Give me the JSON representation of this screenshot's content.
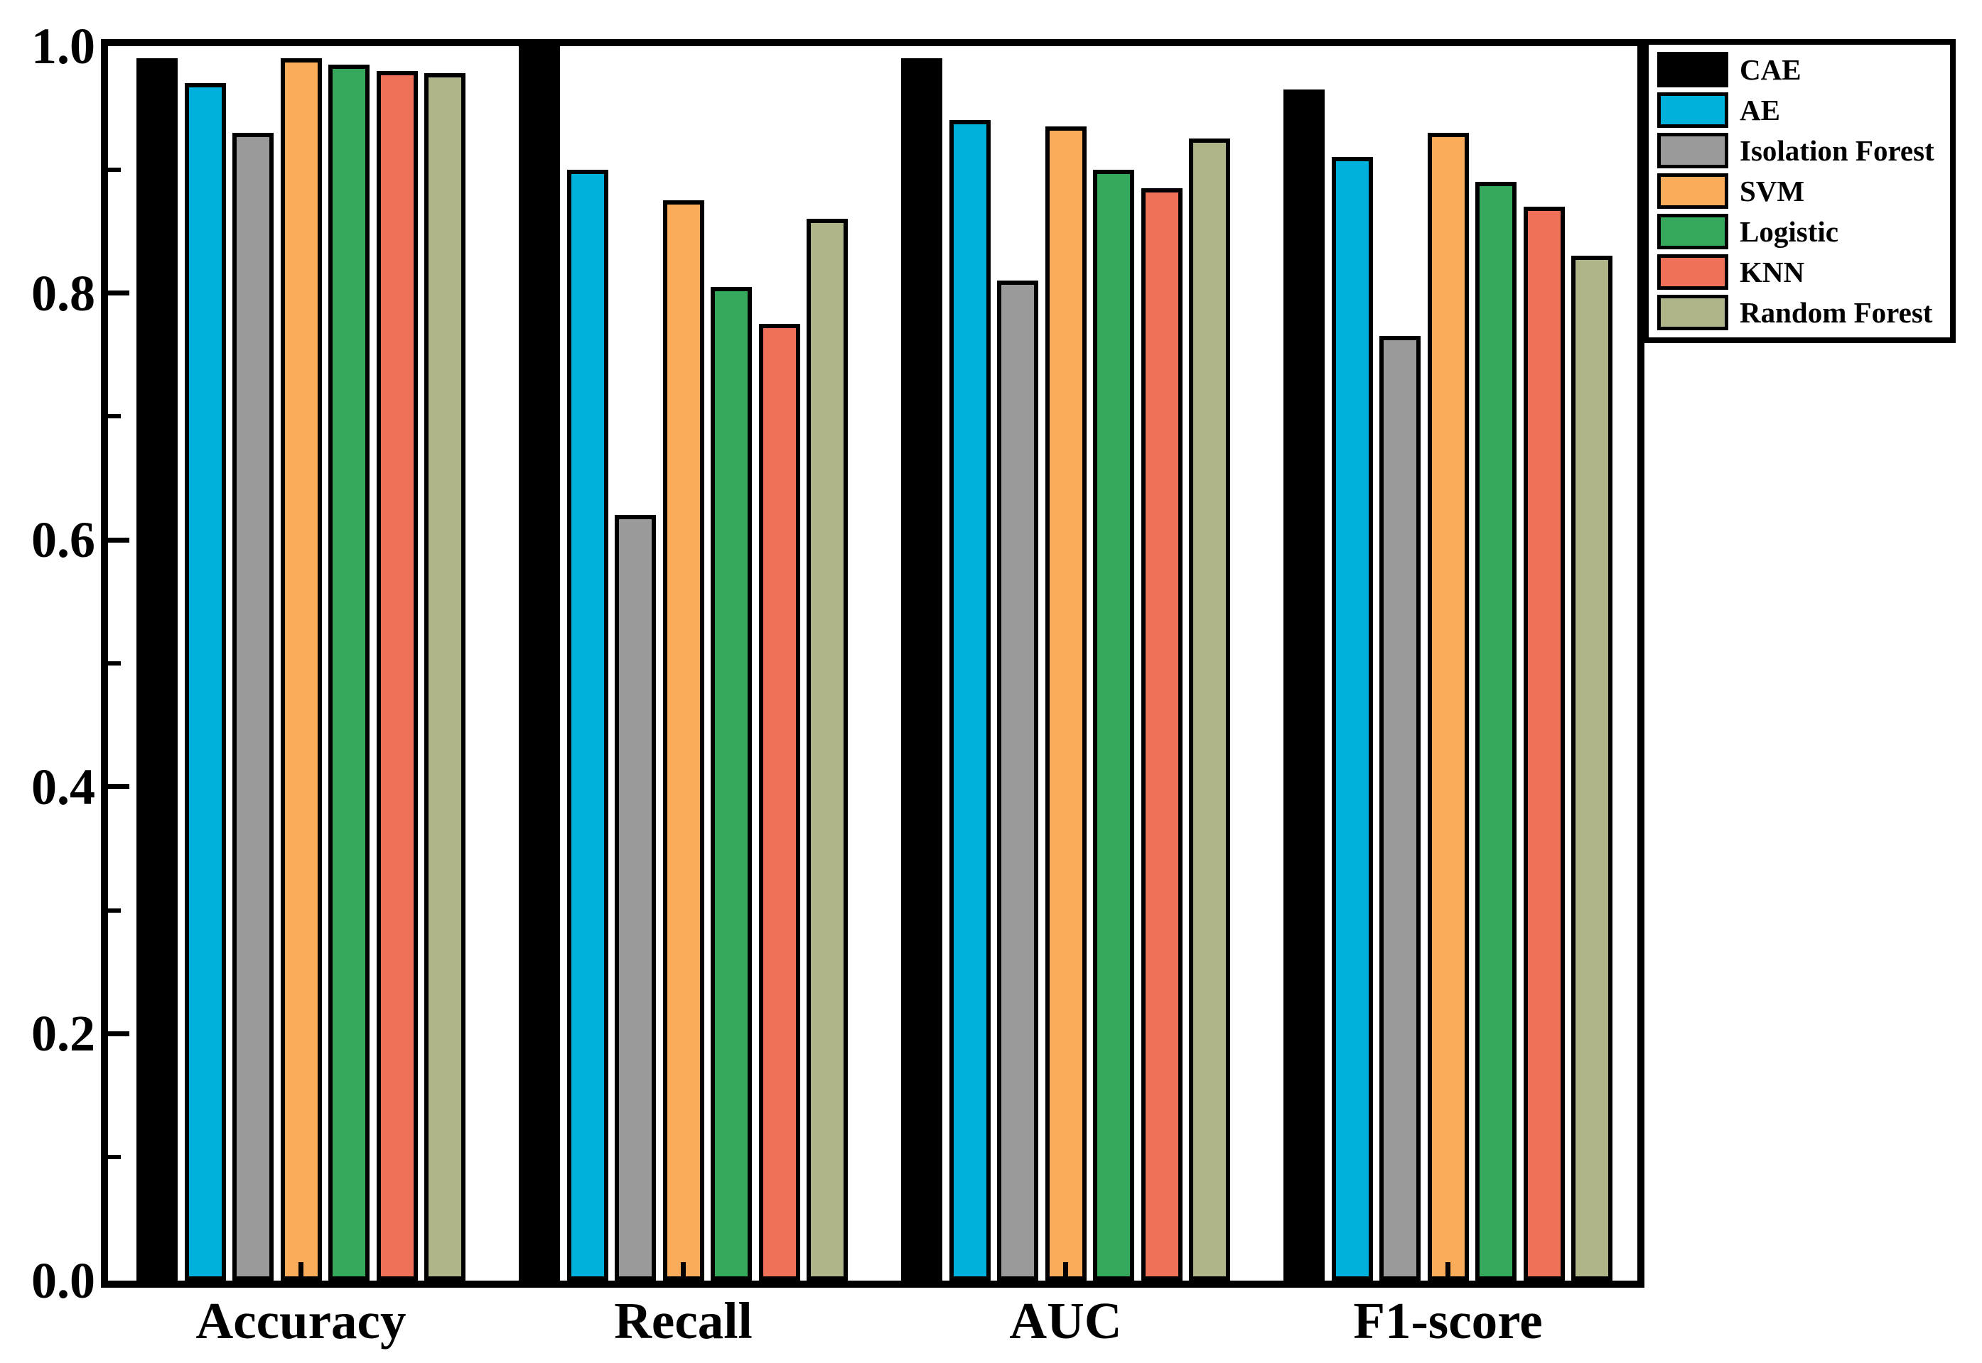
{
  "chart_data": {
    "type": "bar",
    "title": "",
    "xlabel": "",
    "ylabel": "",
    "categories": [
      "Accuracy",
      "Recall",
      "AUC",
      "F1-score"
    ],
    "series": [
      {
        "name": "CAE",
        "color": "#000000",
        "values": [
          0.99,
          1.0,
          0.99,
          0.965
        ]
      },
      {
        "name": "AE",
        "color": "#00B1DC",
        "values": [
          0.97,
          0.9,
          0.94,
          0.91
        ]
      },
      {
        "name": "Isolation Forest",
        "color": "#9A9A9A",
        "values": [
          0.93,
          0.62,
          0.81,
          0.765
        ]
      },
      {
        "name": "SVM",
        "color": "#FBAC5B",
        "values": [
          0.99,
          0.875,
          0.935,
          0.93
        ]
      },
      {
        "name": "Logistic",
        "color": "#35A85C",
        "values": [
          0.985,
          0.805,
          0.9,
          0.89
        ]
      },
      {
        "name": "KNN",
        "color": "#EE7158",
        "values": [
          0.98,
          0.775,
          0.885,
          0.87
        ]
      },
      {
        "name": "Random Forest",
        "color": "#AFB489",
        "values": [
          0.978,
          0.86,
          0.925,
          0.83
        ]
      }
    ],
    "ylim": [
      0.0,
      1.0
    ],
    "yticks": [
      0.0,
      0.2,
      0.4,
      0.6,
      0.8,
      1.0
    ],
    "ytick_labels": [
      "0.0",
      "0.2",
      "0.4",
      "0.6",
      "0.8",
      "1.0"
    ],
    "minor_yticks": [
      0.1,
      0.3,
      0.5,
      0.7,
      0.9
    ],
    "grid": false,
    "legend_position": "upper right",
    "legend": [
      "CAE",
      "AE",
      "Isolation Forest",
      "SVM",
      "Logistic",
      "KNN",
      "Random Forest"
    ],
    "axis_color": "#000000",
    "background_color": "#FFFFFF"
  }
}
